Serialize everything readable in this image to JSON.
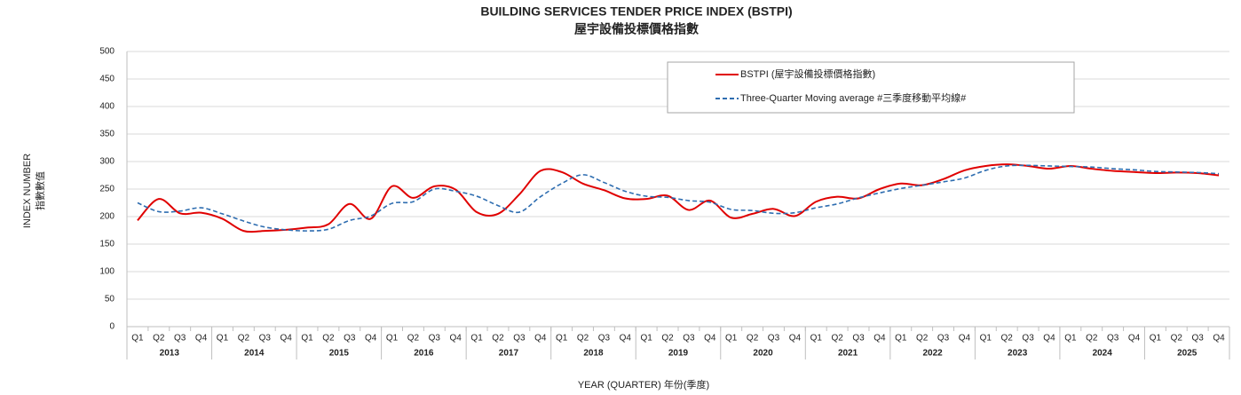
{
  "chart_data": {
    "type": "line",
    "title": "BUILDING SERVICES TENDER PRICE INDEX (BSTPI)",
    "subtitle": "屋宇設備投標價格指數",
    "ylabel": "INDEX NUMBER",
    "ylabel_zh": "指數數值",
    "xlabel": "YEAR (QUARTER) 年份(季度)",
    "categories": [
      "Q1",
      "Q2",
      "Q3",
      "Q4",
      "Q1",
      "Q2",
      "Q3",
      "Q4",
      "Q1",
      "Q2",
      "Q3",
      "Q4",
      "Q1",
      "Q2",
      "Q3",
      "Q4",
      "Q1",
      "Q2",
      "Q3",
      "Q4",
      "Q1",
      "Q2",
      "Q3",
      "Q4",
      "Q1",
      "Q2",
      "Q3",
      "Q4",
      "Q1",
      "Q2",
      "Q3",
      "Q4",
      "Q1",
      "Q2",
      "Q3",
      "Q4",
      "Q1",
      "Q2",
      "Q3",
      "Q4",
      "Q1",
      "Q2",
      "Q3",
      "Q4",
      "Q1",
      "Q2",
      "Q3",
      "Q4",
      "Q1",
      "Q2",
      "Q3",
      "Q4"
    ],
    "years": [
      "2013",
      "2014",
      "2015",
      "2016",
      "2017",
      "2018",
      "2019",
      "2020",
      "2021",
      "2022",
      "2023",
      "2024",
      "2025"
    ],
    "series": [
      {
        "name": "BSTPI (屋宇設備投標價格指數)",
        "color": "#e00000",
        "dash": false,
        "values": [
          193,
          232,
          206,
          207,
          196,
          174,
          174,
          176,
          180,
          186,
          223,
          196,
          255,
          234,
          255,
          249,
          208,
          205,
          240,
          283,
          281,
          260,
          248,
          233,
          232,
          238,
          212,
          229,
          198,
          205,
          214,
          201,
          227,
          236,
          233,
          250,
          260,
          257,
          268,
          284,
          292,
          295,
          292,
          287,
          292,
          287,
          283,
          281,
          279,
          280,
          279,
          275
        ]
      },
      {
        "name": "Three-Quarter Moving average #三季度移動平均線#",
        "color": "#2e6db0",
        "dash": true,
        "values": [
          225,
          209,
          210,
          216,
          205,
          192,
          181,
          176,
          174,
          177,
          193,
          201,
          224,
          227,
          250,
          246,
          237,
          220,
          208,
          236,
          260,
          276,
          262,
          246,
          237,
          235,
          229,
          226,
          213,
          211,
          206,
          207,
          216,
          223,
          234,
          243,
          251,
          257,
          263,
          270,
          284,
          292,
          293,
          292,
          291,
          290,
          287,
          285,
          282,
          281,
          280,
          278
        ]
      }
    ],
    "ylim": [
      0,
      500
    ],
    "yticks": [
      0,
      50,
      100,
      150,
      200,
      250,
      300,
      350,
      400,
      450,
      500
    ],
    "grid": true,
    "legend": "top"
  }
}
